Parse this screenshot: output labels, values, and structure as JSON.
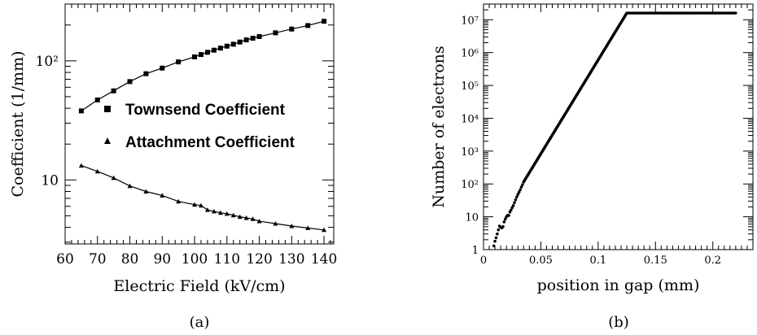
{
  "chart_data": [
    {
      "type": "line",
      "caption": "(a)",
      "xlabel": "Electric Field (kV/cm)",
      "ylabel": "Coefficient (1/mm)",
      "xlim": [
        60,
        143
      ],
      "ylim": [
        2.9,
        300
      ],
      "yscale": "log",
      "xticks": [
        60,
        70,
        80,
        90,
        100,
        110,
        120,
        130,
        140
      ],
      "xtick_labels": [
        "60",
        "70",
        "80",
        "90",
        "100",
        "110",
        "120",
        "130",
        "140"
      ],
      "yticks": [
        10,
        100
      ],
      "ytick_labels": [
        "10",
        "10²"
      ],
      "legend_position": "center-right",
      "series": [
        {
          "name": "Townsend Coefficient",
          "marker": "square",
          "x": [
            65,
            70,
            75,
            80,
            85,
            90,
            95,
            100,
            102,
            104,
            106,
            108,
            110,
            112,
            114,
            116,
            118,
            120,
            125,
            130,
            135,
            140
          ],
          "y": [
            38,
            47,
            56,
            67,
            78,
            87,
            98,
            108,
            113,
            118,
            123,
            128,
            133,
            138,
            144,
            150,
            155,
            160,
            172,
            185,
            198,
            215
          ]
        },
        {
          "name": "Attachment Coefficient",
          "marker": "triangle",
          "x": [
            65,
            70,
            75,
            80,
            85,
            90,
            95,
            100,
            102,
            104,
            106,
            108,
            110,
            112,
            114,
            116,
            118,
            120,
            125,
            130,
            135,
            140
          ],
          "y": [
            13.2,
            11.8,
            10.4,
            8.9,
            8.0,
            7.4,
            6.6,
            6.2,
            6.1,
            5.6,
            5.45,
            5.3,
            5.2,
            5.05,
            4.9,
            4.8,
            4.7,
            4.5,
            4.3,
            4.1,
            3.95,
            3.8
          ]
        }
      ]
    },
    {
      "type": "scatter",
      "caption": "(b)",
      "xlabel": "position in gap (mm)",
      "ylabel": "Number of electrons",
      "xlim": [
        0,
        0.235
      ],
      "ylim": [
        1,
        30000000
      ],
      "yscale": "log",
      "xticks": [
        0,
        0.05,
        0.1,
        0.15,
        0.2
      ],
      "xtick_labels": [
        "0",
        "0.05",
        "0.1",
        "0.15",
        "0.2"
      ],
      "yticks": [
        1,
        10,
        100,
        1000,
        10000,
        100000,
        1000000,
        10000000
      ],
      "ytick_labels": [
        "1",
        "10",
        "10²",
        "10³",
        "10⁴",
        "10⁵",
        "10⁶",
        "10⁷"
      ],
      "series": [
        {
          "description": "exponential avalanche growth until saturation at about 1.6e7 electrons near 0.125 mm, then constant to 0.22 mm",
          "x": [
            0.009,
            0.01,
            0.011,
            0.012,
            0.013,
            0.014,
            0.015,
            0.016,
            0.017,
            0.018,
            0.019,
            0.02,
            0.021,
            0.022,
            0.023,
            0.024,
            0.025,
            0.026,
            0.027,
            0.028,
            0.029,
            0.03,
            0.031,
            0.032,
            0.033,
            0.034,
            0.035
          ],
          "y": [
            1.3,
            1.8,
            2.3,
            3,
            4,
            5.2,
            4.8,
            4.6,
            5,
            7,
            8.5,
            10,
            11,
            11,
            14,
            16,
            19,
            22,
            27,
            33,
            40,
            48,
            56,
            66,
            80,
            95,
            115
          ],
          "growth_start_x": 0.035,
          "growth_start_y": 115,
          "saturation_x": 0.125,
          "saturation_y": 16000000,
          "end_x": 0.22
        }
      ]
    }
  ]
}
